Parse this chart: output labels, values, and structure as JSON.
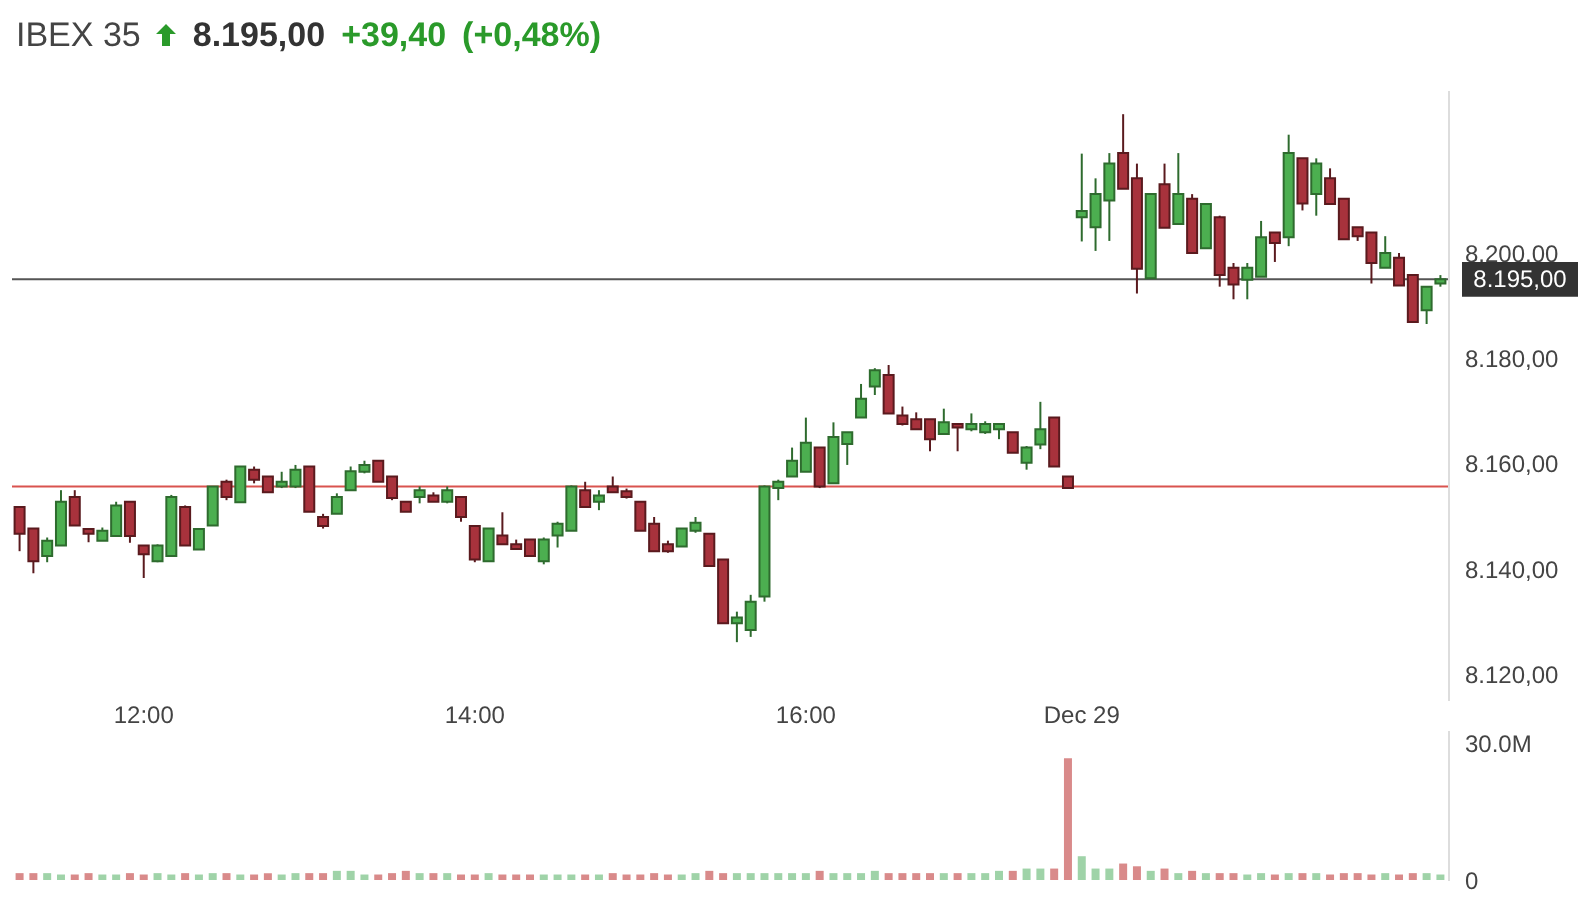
{
  "chart_data": [
    {
      "type": "candlestick",
      "title": "IBEX 35",
      "annotations": [
        "8.195,00",
        "+39,40",
        "(+0,48%)"
      ],
      "categories": [
        null,
        null,
        null,
        null,
        null,
        null,
        null,
        null,
        null,
        "12:00",
        null,
        null,
        null,
        null,
        null,
        null,
        null,
        null,
        null,
        null,
        null,
        null,
        null,
        null,
        null,
        null,
        null,
        null,
        null,
        null,
        null,
        null,
        null,
        "14:00",
        null,
        null,
        null,
        null,
        null,
        null,
        null,
        null,
        null,
        null,
        null,
        null,
        null,
        null,
        null,
        null,
        null,
        null,
        null,
        null,
        null,
        null,
        null,
        "16:00",
        null,
        null,
        null,
        null,
        null,
        null,
        null,
        null,
        null,
        null,
        null,
        null,
        null,
        null,
        null,
        null,
        null,
        null,
        null,
        "Dec 29",
        null,
        null,
        null,
        null,
        null,
        null,
        null,
        null,
        null,
        null,
        null,
        null,
        null,
        null,
        null,
        null,
        null,
        null,
        null,
        null,
        null,
        null,
        null,
        null,
        null,
        null
      ],
      "ohlc": [
        [
          8151.7,
          8151.7,
          8143.3,
          8146.6
        ],
        [
          8147.6,
          8147.6,
          8139.1,
          8141.4
        ],
        [
          8142.4,
          8145.9,
          8141.2,
          8145.3
        ],
        [
          8144.4,
          8154.9,
          8144.4,
          8152.7
        ],
        [
          8153.6,
          8154.9,
          8148.2,
          8148.2
        ],
        [
          8147.5,
          8147.5,
          8145.0,
          8146.6
        ],
        [
          8145.3,
          8147.8,
          8145.3,
          8147.2
        ],
        [
          8146.2,
          8152.7,
          8146.2,
          8152.0
        ],
        [
          8152.7,
          8152.7,
          8144.9,
          8146.2
        ],
        [
          8144.4,
          8144.4,
          8138.2,
          8142.7
        ],
        [
          8141.4,
          8144.6,
          8141.2,
          8144.4
        ],
        [
          8142.4,
          8154.0,
          8142.4,
          8153.6
        ],
        [
          8151.7,
          8152.0,
          8144.4,
          8144.4
        ],
        [
          8143.6,
          8147.5,
          8143.6,
          8147.5
        ],
        [
          8148.2,
          8155.6,
          8148.2,
          8155.6
        ],
        [
          8156.5,
          8156.9,
          8153.0,
          8153.6
        ],
        [
          8152.6,
          8159.4,
          8152.6,
          8159.4
        ],
        [
          8158.8,
          8159.4,
          8156.2,
          8156.9
        ],
        [
          8157.5,
          8157.5,
          8154.5,
          8154.5
        ],
        [
          8155.6,
          8158.4,
          8155.3,
          8156.5
        ],
        [
          8155.6,
          8159.7,
          8155.3,
          8158.8
        ],
        [
          8159.4,
          8159.4,
          8150.8,
          8150.8
        ],
        [
          8149.8,
          8150.4,
          8147.6,
          8148.1
        ],
        [
          8150.4,
          8154.3,
          8150.4,
          8153.6
        ],
        [
          8154.9,
          8159.4,
          8154.9,
          8158.5
        ],
        [
          8158.4,
          8160.5,
          8158.1,
          8159.7
        ],
        [
          8160.5,
          8160.5,
          8156.5,
          8156.5
        ],
        [
          8157.5,
          8157.5,
          8153.0,
          8153.4
        ],
        [
          8152.7,
          8152.7,
          8150.8,
          8150.8
        ],
        [
          8153.6,
          8155.6,
          8152.4,
          8154.9
        ],
        [
          8153.9,
          8154.5,
          8152.7,
          8152.7
        ],
        [
          8152.7,
          8155.6,
          8152.4,
          8154.9
        ],
        [
          8153.6,
          8153.6,
          8148.9,
          8149.8
        ],
        [
          8148.1,
          8148.1,
          8141.2,
          8141.7
        ],
        [
          8141.4,
          8147.6,
          8141.4,
          8147.6
        ],
        [
          8146.3,
          8150.7,
          8144.6,
          8144.6
        ],
        [
          8144.6,
          8145.5,
          8143.7,
          8143.7
        ],
        [
          8145.5,
          8145.5,
          8142.4,
          8142.4
        ],
        [
          8141.4,
          8145.9,
          8140.8,
          8145.5
        ],
        [
          8146.3,
          8148.9,
          8144.0,
          8148.5
        ],
        [
          8147.2,
          8155.8,
          8147.2,
          8155.6
        ],
        [
          8154.9,
          8156.5,
          8151.7,
          8151.7
        ],
        [
          8152.7,
          8154.9,
          8151.1,
          8153.9
        ],
        [
          8155.6,
          8157.5,
          8154.5,
          8154.5
        ],
        [
          8154.7,
          8155.2,
          8153.3,
          8153.6
        ],
        [
          8152.7,
          8152.7,
          8147.2,
          8147.2
        ],
        [
          8148.5,
          8149.8,
          8143.3,
          8143.3
        ],
        [
          8144.6,
          8145.3,
          8143.0,
          8143.3
        ],
        [
          8144.2,
          8147.6,
          8144.2,
          8147.6
        ],
        [
          8147.2,
          8149.8,
          8146.8,
          8148.7
        ],
        [
          8146.6,
          8146.6,
          8140.5,
          8140.5
        ],
        [
          8141.7,
          8141.7,
          8129.6,
          8129.6
        ],
        [
          8129.6,
          8131.8,
          8126.0,
          8130.7
        ],
        [
          8128.3,
          8135.0,
          8127.0,
          8133.7
        ],
        [
          8134.7,
          8155.8,
          8133.7,
          8155.6
        ],
        [
          8155.3,
          8156.9,
          8153.0,
          8156.5
        ],
        [
          8157.5,
          8163.0,
          8157.5,
          8160.5
        ],
        [
          8158.4,
          8168.7,
          8158.4,
          8163.9
        ],
        [
          8163.0,
          8163.0,
          8155.3,
          8155.6
        ],
        [
          8156.2,
          8167.8,
          8156.2,
          8165.0
        ],
        [
          8163.7,
          8165.9,
          8159.7,
          8165.9
        ],
        [
          8168.7,
          8175.1,
          8168.7,
          8172.3
        ],
        [
          8174.6,
          8178.1,
          8173.0,
          8177.7
        ],
        [
          8176.8,
          8178.7,
          8169.5,
          8169.5
        ],
        [
          8169.1,
          8170.8,
          8167.2,
          8167.5
        ],
        [
          8168.4,
          8169.7,
          8166.5,
          8166.5
        ],
        [
          8168.4,
          8168.4,
          8162.3,
          8164.6
        ],
        [
          8165.6,
          8170.4,
          8165.6,
          8167.8
        ],
        [
          8167.5,
          8167.5,
          8162.3,
          8166.8
        ],
        [
          8166.5,
          8169.5,
          8166.1,
          8167.5
        ],
        [
          8165.9,
          8168.0,
          8165.6,
          8167.5
        ],
        [
          8166.5,
          8167.5,
          8164.6,
          8167.5
        ],
        [
          8165.9,
          8165.9,
          8162.0,
          8162.0
        ],
        [
          8160.1,
          8163.3,
          8158.8,
          8163.0
        ],
        [
          8163.6,
          8171.7,
          8162.7,
          8166.5
        ],
        [
          8168.7,
          8168.7,
          8159.4,
          8159.4
        ],
        [
          8157.5,
          8157.5,
          8155.3,
          8155.3
        ],
        [
          8206.8,
          8218.9,
          8202.2,
          8208.0
        ],
        [
          8204.9,
          8214.2,
          8200.4,
          8211.2
        ],
        [
          8210.0,
          8219.0,
          8202.3,
          8217.0
        ],
        [
          8219.0,
          8226.4,
          8212.2,
          8212.2
        ],
        [
          8214.2,
          8217.0,
          8192.3,
          8197.0
        ],
        [
          8195.2,
          8211.2,
          8195.2,
          8211.2
        ],
        [
          8213.1,
          8217.0,
          8204.8,
          8204.8
        ],
        [
          8205.5,
          8219.0,
          8205.5,
          8211.2
        ],
        [
          8210.3,
          8211.2,
          8200.0,
          8200.0
        ],
        [
          8200.9,
          8209.3,
          8200.9,
          8209.3
        ],
        [
          8206.8,
          8207.1,
          8193.6,
          8195.8
        ],
        [
          8197.2,
          8198.1,
          8191.2,
          8194.0
        ],
        [
          8194.9,
          8198.1,
          8191.2,
          8197.2
        ],
        [
          8195.5,
          8206.1,
          8195.5,
          8203.0
        ],
        [
          8203.9,
          8203.9,
          8198.3,
          8201.9
        ],
        [
          8203.0,
          8222.5,
          8201.3,
          8219.0
        ],
        [
          8218.0,
          8218.0,
          8208.1,
          8209.4
        ],
        [
          8211.2,
          8218.0,
          8207.1,
          8217.0
        ],
        [
          8214.2,
          8216.1,
          8209.3,
          8209.3
        ],
        [
          8210.3,
          8210.3,
          8202.6,
          8202.6
        ],
        [
          8204.9,
          8204.9,
          8202.3,
          8203.2
        ],
        [
          8203.9,
          8203.9,
          8194.2,
          8198.1
        ],
        [
          8197.2,
          8203.2,
          8197.2,
          8200.0
        ],
        [
          8199.1,
          8200.0,
          8193.8,
          8193.8
        ],
        [
          8195.8,
          8195.8,
          8186.9,
          8186.9
        ],
        [
          8189.1,
          8193.6,
          8186.5,
          8193.6
        ],
        [
          8194.2,
          8195.8,
          8193.6,
          8195.0
        ]
      ],
      "ylim": [
        8115,
        8231
      ],
      "yticks": [
        {
          "value": 8120,
          "label": "8.120,00"
        },
        {
          "value": 8140,
          "label": "8.140,00"
        },
        {
          "value": 8160,
          "label": "8.160,00"
        },
        {
          "value": 8180,
          "label": "8.180,00"
        },
        {
          "value": 8200,
          "label": "8.200,00"
        }
      ],
      "ref_lines": [
        {
          "axis": "y",
          "value": 8155.6,
          "color": "#d9534f"
        },
        {
          "axis": "y",
          "value": 8195,
          "label": "8.195,00",
          "color": "#555555"
        }
      ]
    },
    {
      "type": "bar",
      "categories": [
        null,
        null,
        null,
        null,
        null,
        null,
        null,
        null,
        null,
        null,
        null,
        null,
        null,
        null,
        null,
        null,
        null,
        null,
        null,
        null,
        null,
        null,
        null,
        null,
        null,
        null,
        null,
        null,
        null,
        null,
        null,
        null,
        null,
        null,
        null,
        null,
        null,
        null,
        null,
        null,
        null,
        null,
        null,
        null,
        null,
        null,
        null,
        null,
        null,
        null,
        null,
        null,
        null,
        null,
        null,
        null,
        null,
        null,
        null,
        null,
        null,
        null,
        null,
        null,
        null,
        null,
        null,
        null,
        null,
        null,
        null,
        null,
        null,
        null,
        null,
        null,
        null,
        null,
        null,
        null,
        null,
        null,
        null,
        null,
        null,
        null,
        null,
        null,
        null,
        null,
        null,
        null,
        null,
        null,
        null,
        null,
        null,
        null,
        null,
        null,
        null,
        null,
        null,
        null
      ],
      "values": [
        1.5,
        1.5,
        1.5,
        1.2,
        1.2,
        1.5,
        1.2,
        1.2,
        1.5,
        1.2,
        1.5,
        1.2,
        1.5,
        1.2,
        1.5,
        1.5,
        1.2,
        1.2,
        1.5,
        1.2,
        1.5,
        1.5,
        1.5,
        2.0,
        2.0,
        1.2,
        1.2,
        1.5,
        2.0,
        1.5,
        1.5,
        1.5,
        1.2,
        1.2,
        1.5,
        1.2,
        1.2,
        1.2,
        1.2,
        1.2,
        1.2,
        1.2,
        1.2,
        1.5,
        1.2,
        1.2,
        1.5,
        1.2,
        1.2,
        1.5,
        2.0,
        1.5,
        1.5,
        1.5,
        1.5,
        1.5,
        1.5,
        1.5,
        2.0,
        1.5,
        1.5,
        1.5,
        2.0,
        1.5,
        1.5,
        1.5,
        1.5,
        1.5,
        1.5,
        1.5,
        1.5,
        2.0,
        2.0,
        2.5,
        2.5,
        2.5,
        26.6,
        5.2,
        2.5,
        2.5,
        3.6,
        3.0,
        2.0,
        2.5,
        1.5,
        2.0,
        1.5,
        1.5,
        1.5,
        1.2,
        1.5,
        1.2,
        1.5,
        1.5,
        1.5,
        1.2,
        1.5,
        1.5,
        1.2,
        1.5,
        1.2,
        1.5,
        1.5,
        1.2
      ],
      "ylim": [
        0,
        32.8
      ],
      "yticks": [
        0,
        {
          "value": 30,
          "label": "30.0M"
        }
      ],
      "tick_labels": "y"
    }
  ]
}
